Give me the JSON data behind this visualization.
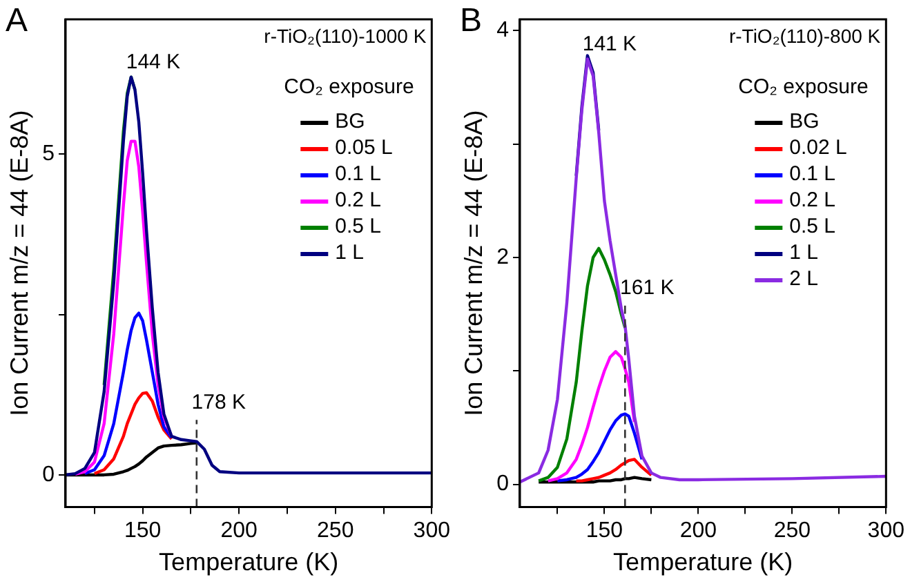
{
  "chart_data": [
    {
      "type": "line",
      "title": "A",
      "subtitle": "r-TiO₂(110)-1000 K",
      "xlabel": "Temperature (K)",
      "ylabel": "Ion Current m/z = 44 (E-8A)",
      "legend_title": "CO₂ exposure",
      "legend": "top right",
      "grid": false,
      "marker": "none",
      "line_style": "solid",
      "x": [
        110,
        115,
        120,
        125,
        130,
        135,
        140,
        142,
        144,
        146,
        148,
        150,
        152,
        155,
        158,
        161,
        165,
        170,
        175,
        178,
        182,
        186,
        190,
        200,
        250,
        300
      ],
      "xlim": [
        110,
        300
      ],
      "xticks": [
        {
          "value": 125,
          "label": null
        },
        150,
        {
          "value": 175,
          "label": null
        },
        200,
        {
          "value": 225,
          "label": null
        },
        250,
        {
          "value": 275,
          "label": null
        },
        300
      ],
      "ylim": [
        -0.5,
        7.1
      ],
      "yticks": [
        0,
        {
          "value": 2.5,
          "label": null
        },
        5
      ],
      "series": [
        {
          "name": "BG",
          "color": "#000000",
          "values": [
            0,
            0,
            0,
            0,
            0,
            0.01,
            0.05,
            0.07,
            0.1,
            0.13,
            0.17,
            0.22,
            0.28,
            0.35,
            0.42,
            0.45,
            0.46,
            0.47,
            0.49,
            0.5,
            null,
            null,
            null,
            null,
            null,
            null
          ]
        },
        {
          "name": "0.05 L",
          "color": "#ff0000",
          "values": [
            null,
            null,
            null,
            0.02,
            0.08,
            0.25,
            0.6,
            0.8,
            0.95,
            1.1,
            1.2,
            1.27,
            1.28,
            1.15,
            0.9,
            0.7,
            0.56,
            null,
            null,
            null,
            null,
            null,
            null,
            null,
            null,
            null
          ]
        },
        {
          "name": "0.1 L",
          "color": "#0000ff",
          "values": [
            null,
            null,
            0.02,
            0.08,
            0.3,
            0.8,
            1.6,
            1.95,
            2.25,
            2.45,
            2.52,
            2.4,
            2.1,
            1.6,
            1.1,
            0.75,
            0.58,
            null,
            null,
            null,
            null,
            null,
            null,
            null,
            null,
            null
          ]
        },
        {
          "name": "0.2 L",
          "color": "#ff00ff",
          "values": [
            null,
            0.01,
            0.05,
            0.2,
            0.8,
            2.2,
            4.2,
            4.9,
            5.2,
            5.2,
            4.8,
            4.1,
            3.3,
            2.2,
            1.4,
            0.9,
            0.6,
            null,
            null,
            null,
            null,
            null,
            null,
            null,
            null,
            null
          ]
        },
        {
          "name": "0.5 L",
          "color": "#008000",
          "values": [
            null,
            null,
            null,
            null,
            1.4,
            3.2,
            5.35,
            5.95,
            6.2,
            6.0,
            null,
            null,
            null,
            null,
            null,
            null,
            null,
            null,
            null,
            null,
            null,
            null,
            null,
            null,
            null,
            null
          ]
        },
        {
          "name": "1 L",
          "color": "#000080",
          "values": [
            0,
            0.02,
            0.1,
            0.35,
            1.3,
            3.0,
            5.2,
            5.9,
            6.2,
            6.0,
            5.5,
            4.7,
            3.8,
            2.6,
            1.6,
            0.95,
            0.6,
            0.55,
            0.53,
            0.52,
            0.4,
            0.15,
            0.05,
            0.03,
            0.03,
            0.03
          ]
        }
      ],
      "ref_lines": [
        {
          "axis": "x",
          "value": 178,
          "line_style": "dashed",
          "color": "#333333"
        }
      ],
      "annotations": [
        {
          "text": "144 K",
          "x": 144,
          "y": 6.2
        },
        {
          "text": "178 K",
          "x": 178,
          "y": 0.9
        }
      ]
    },
    {
      "type": "line",
      "title": "B",
      "subtitle": "r-TiO₂(110)-800 K",
      "xlabel": "Temperature (K)",
      "ylabel": "Ion Current m/z = 44 (E-8A)",
      "legend_title": "CO₂ exposure",
      "legend": "top right",
      "grid": false,
      "marker": "none",
      "line_style": "solid",
      "x": [
        105,
        115,
        120,
        125,
        130,
        135,
        138,
        141,
        144,
        147,
        150,
        153,
        156,
        159,
        161,
        163,
        166,
        170,
        175,
        180,
        190,
        200,
        250,
        300
      ],
      "xlim": [
        105,
        300
      ],
      "xticks": [
        {
          "value": 125,
          "label": null
        },
        150,
        {
          "value": 175,
          "label": null
        },
        200,
        {
          "value": 225,
          "label": null
        },
        250,
        {
          "value": 275,
          "label": null
        },
        300
      ],
      "ylim": [
        -0.2,
        4.1
      ],
      "yticks": [
        0,
        {
          "value": 1,
          "label": null
        },
        2,
        {
          "value": 3,
          "label": null
        },
        4
      ],
      "series": [
        {
          "name": "BG",
          "color": "#000000",
          "values": [
            null,
            0.02,
            0.02,
            0.02,
            0.02,
            0.02,
            0.02,
            0.02,
            0.02,
            0.03,
            0.03,
            0.03,
            0.04,
            0.04,
            0.05,
            0.05,
            0.06,
            0.05,
            0.04,
            null,
            null,
            null,
            null,
            null
          ]
        },
        {
          "name": "0.02 L",
          "color": "#ff0000",
          "values": [
            null,
            null,
            null,
            null,
            null,
            0.03,
            0.03,
            0.04,
            0.05,
            0.06,
            0.08,
            0.1,
            0.13,
            0.17,
            0.19,
            0.21,
            0.22,
            0.15,
            0.08,
            null,
            null,
            null,
            null,
            null
          ]
        },
        {
          "name": "0.1 L",
          "color": "#0000ff",
          "values": [
            null,
            null,
            null,
            0.03,
            0.04,
            0.06,
            0.09,
            0.13,
            0.2,
            0.28,
            0.38,
            0.48,
            0.56,
            0.61,
            0.62,
            0.6,
            0.45,
            0.22,
            null,
            null,
            null,
            null,
            null,
            null
          ]
        },
        {
          "name": "0.2 L",
          "color": "#ff00ff",
          "values": [
            null,
            null,
            0.03,
            0.05,
            0.1,
            0.22,
            0.35,
            0.5,
            0.68,
            0.85,
            1.0,
            1.12,
            1.17,
            1.12,
            1.02,
            0.9,
            0.55,
            null,
            null,
            null,
            null,
            null,
            null,
            null
          ]
        },
        {
          "name": "0.5 L",
          "color": "#008000",
          "values": [
            null,
            0.03,
            0.06,
            0.15,
            0.4,
            0.9,
            1.35,
            1.75,
            2.0,
            2.08,
            1.98,
            1.85,
            1.7,
            1.5,
            1.38,
            null,
            null,
            null,
            null,
            null,
            null,
            null,
            null,
            null
          ]
        },
        {
          "name": "1 L",
          "color": "#000080",
          "values": [
            null,
            null,
            null,
            null,
            null,
            2.72,
            3.33,
            3.78,
            3.63,
            3.12,
            null,
            null,
            null,
            null,
            null,
            null,
            null,
            null,
            null,
            null,
            null,
            null,
            null,
            null
          ]
        },
        {
          "name": "2 L",
          "color": "#8a2be2",
          "values": [
            0.02,
            0.1,
            0.3,
            0.75,
            1.6,
            2.7,
            3.3,
            3.75,
            3.6,
            3.1,
            2.5,
            2.15,
            1.85,
            1.55,
            1.4,
            1.1,
            0.6,
            0.25,
            0.1,
            0.06,
            0.04,
            0.04,
            0.05,
            0.07
          ]
        }
      ],
      "ref_lines": [
        {
          "axis": "x",
          "value": 161,
          "line_style": "dashed",
          "color": "#333333"
        }
      ],
      "annotations": [
        {
          "text": "141 K",
          "x": 141,
          "y": 3.75
        },
        {
          "text": "161 K",
          "x": 161,
          "y": 1.6
        }
      ]
    }
  ]
}
